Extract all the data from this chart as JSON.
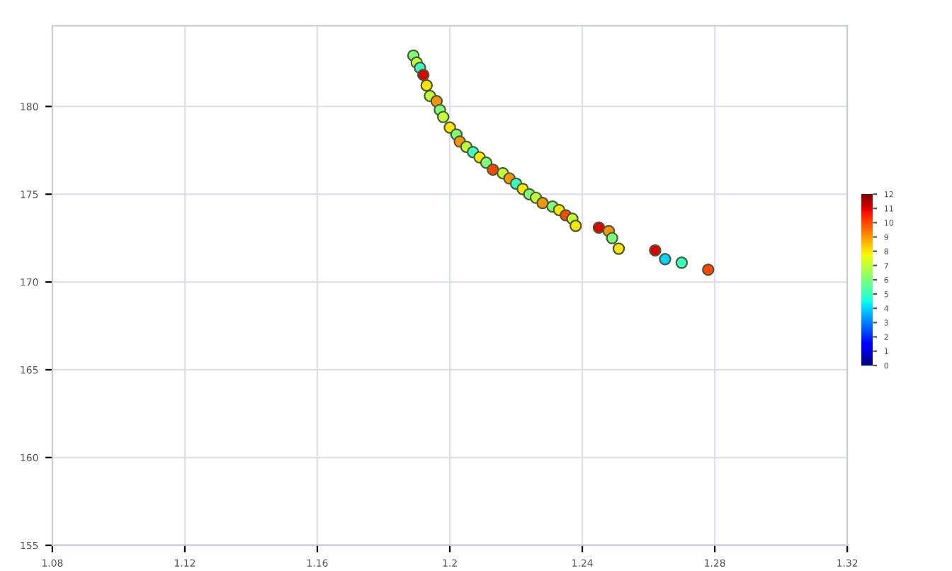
{
  "chart_data": {
    "type": "scatter",
    "x": [
      1.189,
      1.19,
      1.191,
      1.192,
      1.193,
      1.194,
      1.196,
      1.197,
      1.198,
      1.2,
      1.202,
      1.203,
      1.205,
      1.207,
      1.209,
      1.211,
      1.213,
      1.216,
      1.218,
      1.22,
      1.222,
      1.224,
      1.226,
      1.228,
      1.231,
      1.233,
      1.235,
      1.237,
      1.238,
      1.245,
      1.248,
      1.249,
      1.251,
      1.262,
      1.265,
      1.27,
      1.278
    ],
    "values": [
      182.9,
      182.5,
      182.2,
      181.8,
      181.2,
      180.6,
      180.3,
      179.8,
      179.4,
      178.8,
      178.4,
      178.0,
      177.7,
      177.4,
      177.1,
      176.8,
      176.4,
      176.2,
      175.9,
      175.6,
      175.3,
      175.0,
      174.8,
      174.5,
      174.3,
      174.1,
      173.8,
      173.6,
      173.2,
      173.1,
      172.9,
      172.5,
      171.9,
      171.8,
      171.3,
      171.1,
      170.7
    ],
    "cvalues": [
      6,
      7,
      5,
      11,
      8,
      7,
      9,
      6,
      7,
      8,
      6,
      9,
      7,
      5,
      8,
      6,
      10,
      7,
      9,
      5,
      8,
      6,
      7,
      9,
      6,
      8,
      10,
      7,
      8,
      11,
      9,
      6,
      8,
      11,
      4,
      5,
      10
    ],
    "xlim": [
      1.08,
      1.32
    ],
    "xticks": [
      1.08,
      1.12,
      1.16,
      1.2,
      1.24,
      1.28,
      1.32
    ],
    "ylim": [
      155,
      184.6
    ],
    "yticks": [
      155,
      160,
      165,
      170,
      175,
      180
    ],
    "clim": [
      0,
      12
    ],
    "cticks": [
      0,
      1,
      2,
      3,
      4,
      5,
      6,
      7,
      8,
      9,
      10,
      11,
      12
    ],
    "grid": true,
    "marker": "circle"
  }
}
